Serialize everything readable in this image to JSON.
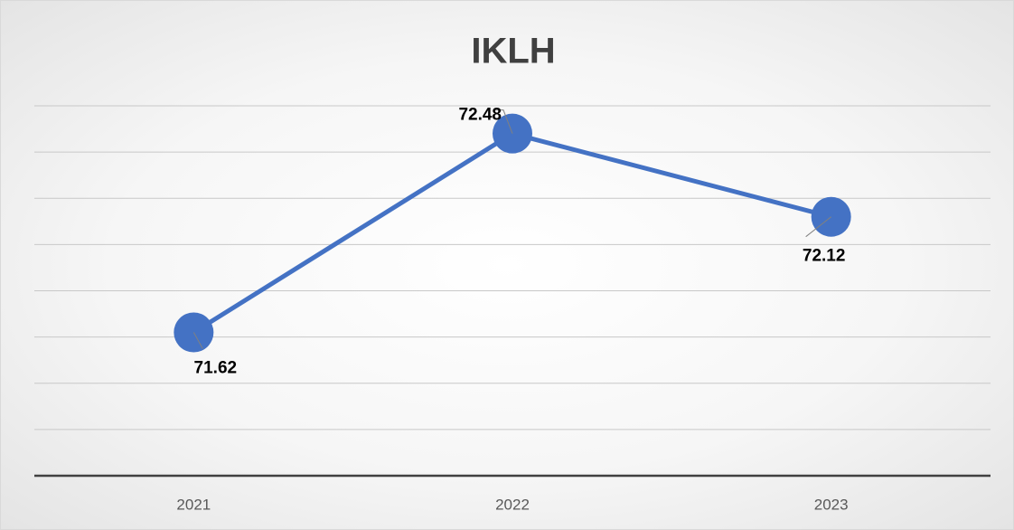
{
  "chart_data": {
    "type": "line",
    "title": "IKLH",
    "categories": [
      "2021",
      "2022",
      "2023"
    ],
    "series": [
      {
        "name": "IKLH",
        "color": "#4472c4",
        "values": [
          71.62,
          72.48,
          72.12
        ]
      }
    ],
    "ylim": [
      71.0,
      72.6
    ],
    "yticks": [
      71.0,
      71.2,
      71.4,
      71.6,
      71.8,
      72.0,
      72.2,
      72.4,
      72.6
    ],
    "grid": true
  }
}
